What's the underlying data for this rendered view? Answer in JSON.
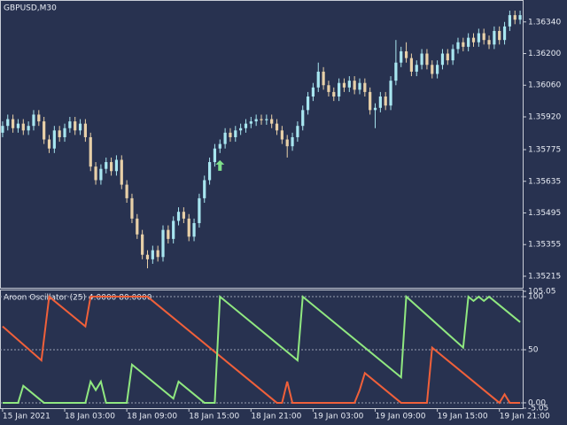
{
  "chart_data": [
    {
      "type": "candlestick",
      "title": "GBPUSD,M30",
      "up_color": "#a8e6f0",
      "down_color": "#e8d0a8",
      "xlim": [
        -0.5,
        100.5
      ],
      "ylim": [
        1.35164,
        1.36437
      ],
      "yticks": [
        {
          "value": 1.3634,
          "label": "1.36340"
        },
        {
          "value": 1.362,
          "label": "1.36200"
        },
        {
          "value": 1.3606,
          "label": "1.36060"
        },
        {
          "value": 1.3592,
          "label": "1.35920"
        },
        1.35775,
        1.35635,
        1.35495,
        1.35355,
        1.35215
      ],
      "open": [
        1.3585,
        1.3588,
        1.3591,
        1.3587,
        1.3589,
        1.3586,
        1.3588,
        1.3593,
        1.359,
        1.3582,
        1.3578,
        1.3586,
        1.3583,
        1.3587,
        1.359,
        1.3586,
        1.3589,
        1.3583,
        1.357,
        1.3564,
        1.3569,
        1.3572,
        1.3568,
        1.3573,
        1.3562,
        1.3556,
        1.3547,
        1.354,
        1.3531,
        1.3529,
        1.3533,
        1.353,
        1.3542,
        1.3538,
        1.3546,
        1.355,
        1.3547,
        1.3539,
        1.3545,
        1.3556,
        1.3564,
        1.3572,
        1.3578,
        1.358,
        1.3585,
        1.3583,
        1.3586,
        1.3587,
        1.3589,
        1.359,
        1.3591,
        1.35905,
        1.3591,
        1.3589,
        1.3586,
        1.3582,
        1.3579,
        1.3583,
        1.3588,
        1.3595,
        1.3601,
        1.3605,
        1.3612,
        1.3606,
        1.3603,
        1.3601,
        1.3607,
        1.3605,
        1.3608,
        1.3604,
        1.3607,
        1.3603,
        1.3595,
        1.3596,
        1.3601,
        1.3597,
        1.3608,
        1.3616,
        1.3621,
        1.3618,
        1.3612,
        1.3615,
        1.362,
        1.3615,
        1.3611,
        1.3615,
        1.362,
        1.3617,
        1.3622,
        1.3625,
        1.3623,
        1.3627,
        1.3625,
        1.3629,
        1.3626,
        1.3624,
        1.363,
        1.3626,
        1.3632,
        1.3637,
        1.3635
      ],
      "high": [
        1.359,
        1.3593,
        1.3593,
        1.3591,
        1.3591,
        1.359,
        1.3595,
        1.3595,
        1.3592,
        1.3584,
        1.3588,
        1.3588,
        1.3589,
        1.3592,
        1.3592,
        1.3591,
        1.3591,
        1.3585,
        1.3572,
        1.3571,
        1.3574,
        1.3574,
        1.3575,
        1.3575,
        1.3564,
        1.3558,
        1.3549,
        1.3542,
        1.3533,
        1.3535,
        1.3535,
        1.3544,
        1.3544,
        1.3548,
        1.3552,
        1.3552,
        1.3549,
        1.3547,
        1.3558,
        1.3566,
        1.3574,
        1.358,
        1.3582,
        1.3587,
        1.3587,
        1.3588,
        1.3589,
        1.3591,
        1.3592,
        1.3593,
        1.3593,
        1.3593,
        1.3593,
        1.3591,
        1.3588,
        1.3584,
        1.3585,
        1.359,
        1.3597,
        1.3603,
        1.3607,
        1.3616,
        1.3614,
        1.3608,
        1.3605,
        1.3609,
        1.3609,
        1.361,
        1.361,
        1.3609,
        1.3609,
        1.3605,
        1.3598,
        1.3603,
        1.3603,
        1.361,
        1.3626,
        1.3623,
        1.3625,
        1.362,
        1.3617,
        1.3622,
        1.3622,
        1.3617,
        1.3617,
        1.3622,
        1.3622,
        1.3624,
        1.3627,
        1.3627,
        1.3629,
        1.3629,
        1.3631,
        1.3631,
        1.3628,
        1.3632,
        1.3632,
        1.3634,
        1.3639,
        1.3639,
        1.3639
      ],
      "low": [
        1.3583,
        1.3586,
        1.3585,
        1.3585,
        1.3584,
        1.3584,
        1.3586,
        1.3588,
        1.358,
        1.3576,
        1.3576,
        1.3581,
        1.3581,
        1.3585,
        1.3584,
        1.3584,
        1.3581,
        1.3568,
        1.3562,
        1.3562,
        1.3567,
        1.3566,
        1.3566,
        1.356,
        1.3554,
        1.3545,
        1.3538,
        1.3529,
        1.3525,
        1.3527,
        1.3528,
        1.3528,
        1.3536,
        1.3536,
        1.3544,
        1.3545,
        1.3537,
        1.3537,
        1.3543,
        1.3554,
        1.3562,
        1.357,
        1.3576,
        1.3578,
        1.3581,
        1.3581,
        1.3584,
        1.3585,
        1.3587,
        1.3588,
        1.35885,
        1.35885,
        1.3587,
        1.3584,
        1.358,
        1.3574,
        1.3577,
        1.3581,
        1.3586,
        1.3593,
        1.3599,
        1.3603,
        1.3604,
        1.3601,
        1.3599,
        1.3599,
        1.3603,
        1.3603,
        1.3602,
        1.3602,
        1.3601,
        1.3593,
        1.3587,
        1.3594,
        1.3595,
        1.3595,
        1.3606,
        1.3614,
        1.3616,
        1.361,
        1.361,
        1.3613,
        1.3613,
        1.3609,
        1.3609,
        1.3613,
        1.3615,
        1.3615,
        1.362,
        1.3621,
        1.3621,
        1.3623,
        1.3623,
        1.3624,
        1.3622,
        1.3622,
        1.3624,
        1.3624,
        1.363,
        1.3633,
        1.3633
      ],
      "close": [
        1.3588,
        1.3591,
        1.3587,
        1.3589,
        1.3586,
        1.3588,
        1.3593,
        1.359,
        1.3582,
        1.3578,
        1.3586,
        1.3583,
        1.3587,
        1.359,
        1.3586,
        1.3589,
        1.3583,
        1.357,
        1.3564,
        1.3569,
        1.3572,
        1.3568,
        1.3573,
        1.3562,
        1.3556,
        1.3547,
        1.354,
        1.3531,
        1.3529,
        1.3533,
        1.353,
        1.3542,
        1.3538,
        1.3546,
        1.355,
        1.3547,
        1.3539,
        1.3545,
        1.3556,
        1.3564,
        1.3572,
        1.3578,
        1.358,
        1.3585,
        1.3583,
        1.3586,
        1.3587,
        1.3589,
        1.359,
        1.3591,
        1.35905,
        1.3591,
        1.3589,
        1.3586,
        1.3582,
        1.3579,
        1.3583,
        1.3588,
        1.3595,
        1.3601,
        1.3605,
        1.3612,
        1.3606,
        1.3603,
        1.3601,
        1.3607,
        1.3605,
        1.3608,
        1.3604,
        1.3607,
        1.3603,
        1.3595,
        1.3596,
        1.3601,
        1.3597,
        1.3608,
        1.3616,
        1.3621,
        1.3618,
        1.3612,
        1.3615,
        1.362,
        1.3615,
        1.3611,
        1.3615,
        1.362,
        1.3617,
        1.3622,
        1.3625,
        1.3623,
        1.3627,
        1.3625,
        1.3629,
        1.3626,
        1.3624,
        1.363,
        1.3626,
        1.3632,
        1.3637,
        1.3635,
        1.3637
      ],
      "buy_signals": {
        "x": [
          42
        ],
        "values": [
          1.35705
        ],
        "color": "#7fe08a"
      }
    },
    {
      "type": "line",
      "title": "Aroon Oscillator (25) 4.0000 80.0000",
      "xlim": [
        -0.5,
        100.5
      ],
      "ylim": [
        -5.05,
        105.05
      ],
      "yticks": [
        {
          "value": 105.05,
          "label": "105.05"
        },
        100,
        50,
        {
          "value": 0,
          "label": "0.00"
        },
        {
          "value": -5.05,
          "label": "-5.05"
        }
      ],
      "levels": [
        100,
        50,
        0
      ],
      "xticks": [
        {
          "value": 0,
          "label": "15 Jan 2021"
        },
        {
          "value": 12,
          "label": "18 Jan 03:00"
        },
        {
          "value": 24,
          "label": "18 Jan 09:00"
        },
        {
          "value": 36,
          "label": "18 Jan 15:00"
        },
        {
          "value": 48,
          "label": "18 Jan 21:00"
        },
        {
          "value": 60,
          "label": "19 Jan 03:00"
        },
        {
          "value": 72,
          "label": "19 Jan 09:00"
        },
        {
          "value": 84,
          "label": "19 Jan 15:00"
        },
        {
          "value": 96,
          "label": "19 Jan 21:00"
        }
      ],
      "series": [
        {
          "color": "#f0603a",
          "x": [
            0,
            7.5,
            9,
            16,
            17,
            28,
            53,
            54,
            55,
            56,
            68,
            69,
            70,
            77,
            82,
            83,
            96,
            97,
            98,
            100
          ],
          "values": [
            72,
            40,
            100,
            72,
            100,
            100,
            0,
            0,
            20,
            0,
            0,
            12,
            28,
            0,
            0,
            52,
            0,
            8,
            0,
            0
          ]
        },
        {
          "color": "#90e880",
          "x": [
            0,
            3,
            4,
            8,
            16,
            17,
            18,
            19,
            20,
            24,
            25,
            33,
            34,
            39,
            41,
            42,
            57,
            58,
            77,
            78,
            89,
            90,
            91,
            92,
            93,
            94,
            100
          ],
          "values": [
            0,
            0,
            16,
            0,
            0,
            20,
            12,
            20,
            0,
            0,
            36,
            4,
            20,
            0,
            0,
            100,
            40,
            100,
            24,
            100,
            52,
            100,
            96,
            100,
            96,
            100,
            76
          ]
        }
      ]
    }
  ]
}
